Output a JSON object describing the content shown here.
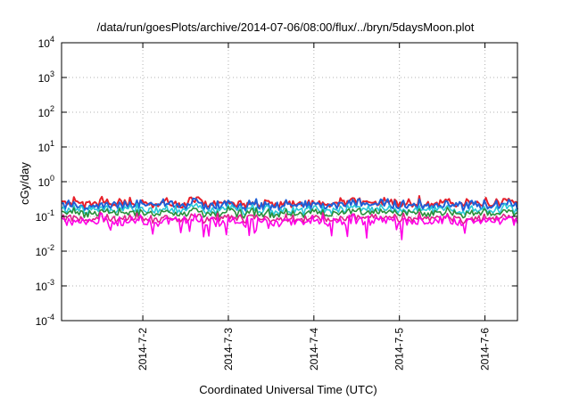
{
  "chart_data": {
    "type": "line",
    "title": "/data/run/goesPlots/archive/2014-07-06/08:00/flux/../bryn/5daysMoon.plot",
    "xlabel": "Coordinated Universal Time (UTC)",
    "ylabel": "cGy/day",
    "yscale": "log",
    "ylim": [
      0.0001,
      10000
    ],
    "xlim_days": [
      1.05,
      6.38
    ],
    "grid": true,
    "legend": "none",
    "x_ticks": [
      {
        "label": "2014-7-2",
        "day": 2
      },
      {
        "label": "2014-7-3",
        "day": 3
      },
      {
        "label": "2014-7-4",
        "day": 4
      },
      {
        "label": "2014-7-5",
        "day": 5
      },
      {
        "label": "2014-7-6",
        "day": 6
      }
    ],
    "y_ticks": [
      {
        "base": "10",
        "exp": "4",
        "value": 10000
      },
      {
        "base": "10",
        "exp": "3",
        "value": 1000
      },
      {
        "base": "10",
        "exp": "2",
        "value": 100
      },
      {
        "base": "10",
        "exp": "1",
        "value": 10
      },
      {
        "base": "10",
        "exp": "0",
        "value": 1
      },
      {
        "base": "10",
        "exp": "-1",
        "value": 0.1
      },
      {
        "base": "10",
        "exp": "-2",
        "value": 0.01
      },
      {
        "base": "10",
        "exp": "-3",
        "value": 0.001
      },
      {
        "base": "10",
        "exp": "-4",
        "value": 0.0001
      }
    ],
    "series": [
      {
        "color": "#e8202a",
        "base": 0.25,
        "spread": 0.18
      },
      {
        "color": "#1f5fd6",
        "base": 0.22,
        "spread": 0.2
      },
      {
        "color": "#28c8d8",
        "base": 0.16,
        "spread": 0.15
      },
      {
        "color": "#2a8f3a",
        "base": 0.13,
        "spread": 0.12
      },
      {
        "color": "#e0208c",
        "base": 0.09,
        "spread": 0.14
      },
      {
        "color": "#ff00e6",
        "base": 0.075,
        "spread": 0.22
      }
    ]
  }
}
